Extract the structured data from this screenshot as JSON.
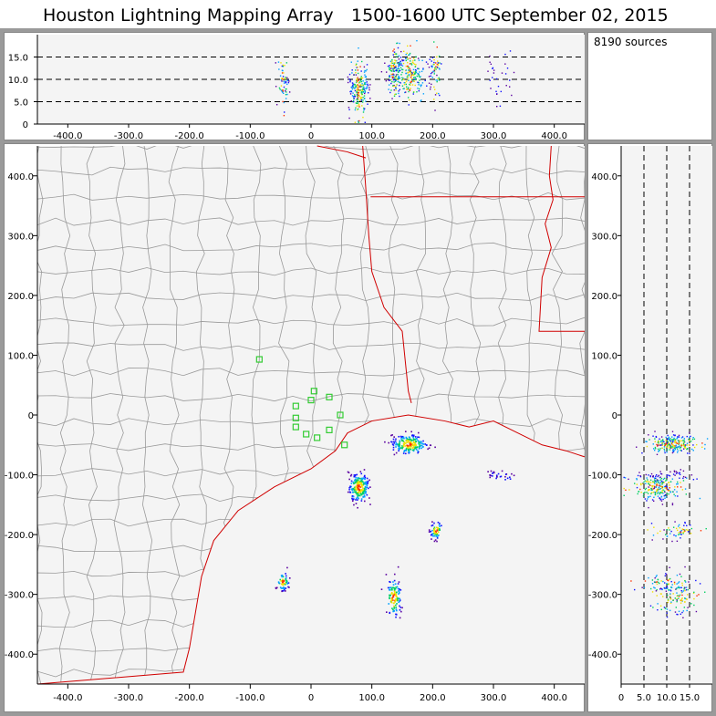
{
  "title": {
    "network": "Houston Lightning Mapping Array",
    "time_range": "1500-1600 UTC",
    "date": "September 02, 2015"
  },
  "source_count": "8190 sources",
  "axes": {
    "x_ticks": [
      "-400.0",
      "-300.0",
      "-200.0",
      "-100.0",
      "0",
      "100.0",
      "200.0",
      "300.0",
      "400.0"
    ],
    "x_values": [
      -400,
      -300,
      -200,
      -100,
      0,
      100,
      200,
      300,
      400
    ],
    "y_ticks": [
      "400.0",
      "300.0",
      "200.0",
      "100.0",
      "0",
      "-100.0",
      "-200.0",
      "-300.0",
      "-400.0"
    ],
    "y_values": [
      400,
      300,
      200,
      100,
      0,
      -100,
      -200,
      -300,
      -400
    ],
    "alt_ticks": [
      "15.0",
      "10.0",
      "5.0",
      "0"
    ],
    "alt_values": [
      15,
      10,
      5,
      0
    ],
    "alt_ticks_bottom": [
      "0",
      "5.0",
      "10.0",
      "15.0"
    ],
    "range_xy": [
      -450,
      450
    ],
    "range_alt": [
      0,
      20
    ]
  },
  "colors": {
    "border_frame": "#9a9a9a",
    "plot_bg": "#f4f4f4",
    "county_lines": "#9a9a9a",
    "state_lines": "#d00000",
    "stations": "#33cc33",
    "density_scale": [
      "#5a00a0",
      "#1010ff",
      "#00a0ff",
      "#00d060",
      "#f0e000",
      "#ff3000"
    ]
  },
  "stations_xy": [
    [
      -85,
      93
    ],
    [
      -25,
      15
    ],
    [
      -25,
      -5
    ],
    [
      -25,
      -20
    ],
    [
      -8,
      -32
    ],
    [
      0,
      25
    ],
    [
      5,
      40
    ],
    [
      10,
      -38
    ],
    [
      30,
      -25
    ],
    [
      30,
      30
    ],
    [
      48,
      0
    ],
    [
      55,
      -50
    ]
  ],
  "storm_clusters": [
    {
      "x": 160,
      "y": -48,
      "spread_x": 14,
      "spread_y": 8,
      "alt": 11,
      "intensity": "high"
    },
    {
      "x": 78,
      "y": -120,
      "spread_x": 8,
      "spread_y": 12,
      "alt": 8,
      "intensity": "high"
    },
    {
      "x": 135,
      "y": -305,
      "spread_x": 6,
      "spread_y": 16,
      "alt": 12,
      "intensity": "medium"
    },
    {
      "x": 205,
      "y": -192,
      "spread_x": 5,
      "spread_y": 7,
      "alt": 12,
      "intensity": "low"
    },
    {
      "x": -47,
      "y": -278,
      "spread_x": 5,
      "spread_y": 7,
      "alt": 9,
      "intensity": "low"
    },
    {
      "x": 308,
      "y": -100,
      "spread_x": 12,
      "spread_y": 4,
      "alt": 10,
      "intensity": "sparse"
    }
  ]
}
